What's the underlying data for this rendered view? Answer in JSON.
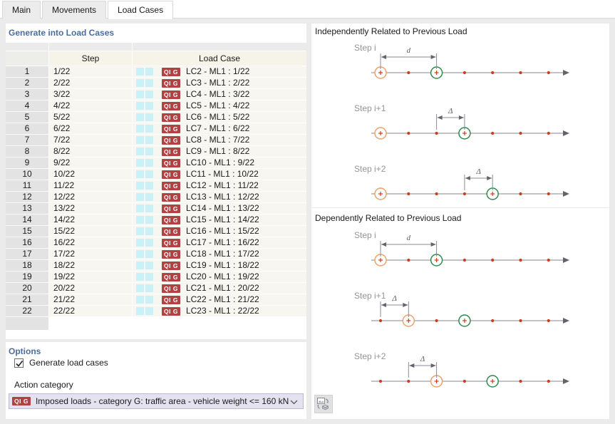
{
  "tabs": [
    {
      "label": "Main",
      "active": false
    },
    {
      "label": "Movements",
      "active": false
    },
    {
      "label": "Load Cases",
      "active": true
    }
  ],
  "left": {
    "table_section_title": "Generate into Load Cases",
    "table": {
      "columns": [
        "",
        "Step",
        "Load Case"
      ],
      "badge_text": "QI G",
      "rows": [
        {
          "num": "1",
          "step": "1/22",
          "load_case": "LC2 - ML1 : 1/22"
        },
        {
          "num": "2",
          "step": "2/22",
          "load_case": "LC3 - ML1 : 2/22"
        },
        {
          "num": "3",
          "step": "3/22",
          "load_case": "LC4 - ML1 : 3/22"
        },
        {
          "num": "4",
          "step": "4/22",
          "load_case": "LC5 - ML1 : 4/22"
        },
        {
          "num": "5",
          "step": "5/22",
          "load_case": "LC6 - ML1 : 5/22"
        },
        {
          "num": "6",
          "step": "6/22",
          "load_case": "LC7 - ML1 : 6/22"
        },
        {
          "num": "7",
          "step": "7/22",
          "load_case": "LC8 - ML1 : 7/22"
        },
        {
          "num": "8",
          "step": "8/22",
          "load_case": "LC9 - ML1 : 8/22"
        },
        {
          "num": "9",
          "step": "9/22",
          "load_case": "LC10 - ML1 : 9/22"
        },
        {
          "num": "10",
          "step": "10/22",
          "load_case": "LC11 - ML1 : 10/22"
        },
        {
          "num": "11",
          "step": "11/22",
          "load_case": "LC12 - ML1 : 11/22"
        },
        {
          "num": "12",
          "step": "12/22",
          "load_case": "LC13 - ML1 : 12/22"
        },
        {
          "num": "13",
          "step": "13/22",
          "load_case": "LC14 - ML1 : 13/22"
        },
        {
          "num": "14",
          "step": "14/22",
          "load_case": "LC15 - ML1 : 14/22"
        },
        {
          "num": "15",
          "step": "15/22",
          "load_case": "LC16 - ML1 : 15/22"
        },
        {
          "num": "16",
          "step": "16/22",
          "load_case": "LC17 - ML1 : 16/22"
        },
        {
          "num": "17",
          "step": "17/22",
          "load_case": "LC18 - ML1 : 17/22"
        },
        {
          "num": "18",
          "step": "18/22",
          "load_case": "LC19 - ML1 : 18/22"
        },
        {
          "num": "19",
          "step": "19/22",
          "load_case": "LC20 - ML1 : 19/22"
        },
        {
          "num": "20",
          "step": "20/22",
          "load_case": "LC21 - ML1 : 20/22"
        },
        {
          "num": "21",
          "step": "21/22",
          "load_case": "LC22 - ML1 : 21/22"
        },
        {
          "num": "22",
          "step": "22/22",
          "load_case": "LC23 - ML1 : 22/22"
        }
      ]
    },
    "options": {
      "section_title": "Options",
      "generate_checkbox": {
        "label": "Generate load cases",
        "checked": true
      },
      "action_category_label": "Action category",
      "action_category_badge": "QI G",
      "action_category_value": "Imposed loads - category G: traffic area - vehicle weight <= 160 kN"
    }
  },
  "right": {
    "slots": 7,
    "colors": {
      "orange_circle": "#eaa26b",
      "green_circle": "#2e8b4c",
      "dot": "#cc3d1e",
      "axis": "#85858f",
      "dim": "#8a8a94",
      "badge_red": "#b04243",
      "cyan_square": "#c9f1fa",
      "title_blue": "#4a6d9b"
    },
    "groups": [
      {
        "title": "Independently Related to Previous Load",
        "diagrams": [
          {
            "label": "Step i",
            "dim_label": "d",
            "orange": 0,
            "green": 2,
            "dim": [
              0,
              2
            ]
          },
          {
            "label": "Step i+1",
            "dim_label": "Δ",
            "orange": 0,
            "green": 3,
            "dim": [
              2,
              3
            ]
          },
          {
            "label": "Step i+2",
            "dim_label": "Δ",
            "orange": 0,
            "green": 4,
            "dim": [
              3,
              4
            ]
          }
        ]
      },
      {
        "title": "Dependently Related to Previous Load",
        "diagrams": [
          {
            "label": "Step i",
            "dim_label": "d",
            "orange": 0,
            "green": 2,
            "dim": [
              0,
              2
            ]
          },
          {
            "label": "Step i+1",
            "dim_label": "Δ",
            "orange": 1,
            "green": 3,
            "dim": [
              0,
              1
            ]
          },
          {
            "label": "Step i+2",
            "dim_label": "Δ",
            "orange": 2,
            "green": 4,
            "dim": [
              1,
              2
            ]
          }
        ]
      }
    ]
  }
}
